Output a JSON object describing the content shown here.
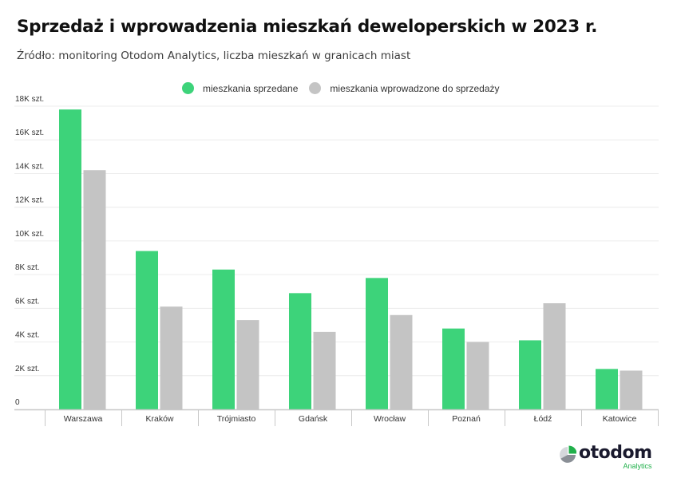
{
  "title": "Sprzedaż i wprowadzenia mieszkań deweloperskich w 2023 r.",
  "subtitle": "Źródło: monitoring Otodom Analytics, liczba mieszkań w granicach miast",
  "colors": {
    "sold": "#3dd37a",
    "introduced": "#c4c4c4",
    "grid": "#ececec",
    "axis": "#c8c8c8"
  },
  "logo": {
    "word": "otodom",
    "sub": "Analytics"
  },
  "chart_data": {
    "type": "bar",
    "title": "Sprzedaż i wprowadzenia mieszkań deweloperskich w 2023 r.",
    "xlabel": "",
    "ylabel": "",
    "ylim": [
      0,
      18000
    ],
    "grid": true,
    "legend_position": "top-center",
    "y_ticks": [
      {
        "value": 0,
        "label": "0"
      },
      {
        "value": 2000,
        "label": "2K szt."
      },
      {
        "value": 4000,
        "label": "4K szt."
      },
      {
        "value": 6000,
        "label": "6K szt."
      },
      {
        "value": 8000,
        "label": "8K szt."
      },
      {
        "value": 10000,
        "label": "10K szt."
      },
      {
        "value": 12000,
        "label": "12K szt."
      },
      {
        "value": 14000,
        "label": "14K szt."
      },
      {
        "value": 16000,
        "label": "16K szt."
      },
      {
        "value": 18000,
        "label": "18K szt."
      }
    ],
    "categories": [
      "Warszawa",
      "Kraków",
      "Trójmiasto",
      "Gdańsk",
      "Wrocław",
      "Poznań",
      "Łódź",
      "Katowice"
    ],
    "series": [
      {
        "name": "mieszkania sprzedane",
        "color": "#3dd37a",
        "values": [
          17800,
          9400,
          8300,
          6900,
          7800,
          4800,
          4100,
          2400
        ]
      },
      {
        "name": "mieszkania wprowadzone do sprzedaży",
        "color": "#c4c4c4",
        "values": [
          14200,
          6100,
          5300,
          4600,
          5600,
          4000,
          6300,
          2300
        ]
      }
    ]
  }
}
